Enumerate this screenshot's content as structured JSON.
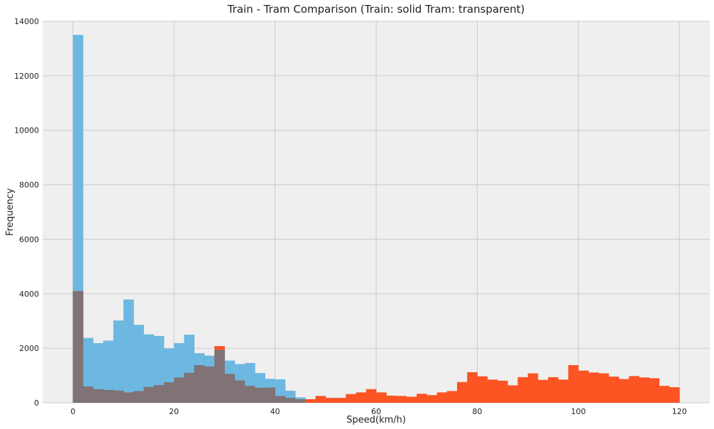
{
  "chart_data": {
    "type": "bar",
    "title": "Train - Tram Comparison (Train: solid Tram: transparent)",
    "xlabel": "Speed(km/h)",
    "ylabel": "Frequency",
    "xlim": [
      -6,
      126
    ],
    "ylim": [
      0,
      14000
    ],
    "xticks": [
      0,
      20,
      40,
      60,
      80,
      100,
      120
    ],
    "yticks": [
      0,
      2000,
      4000,
      6000,
      8000,
      10000,
      12000,
      14000
    ],
    "grid": true,
    "bin_width": 2,
    "colors": {
      "background": "#efefef",
      "grid": "#cbcbcb",
      "train": "#fc5423",
      "tram": "#6db8e1",
      "overlap": "#807275"
    },
    "series": [
      {
        "key": "train",
        "bin_starts": [
          0,
          2,
          4,
          6,
          8,
          10,
          12,
          14,
          16,
          18,
          20,
          22,
          24,
          26,
          28,
          30,
          32,
          34,
          36,
          38,
          40,
          42,
          44,
          46,
          48,
          50,
          52,
          54,
          56,
          58,
          60,
          62,
          64,
          66,
          68,
          70,
          72,
          74,
          76,
          78,
          80,
          82,
          84,
          86,
          88,
          90,
          92,
          94,
          96,
          98,
          100,
          102,
          104,
          106,
          108,
          110,
          112,
          114,
          116,
          118
        ],
        "values": [
          4100,
          600,
          500,
          470,
          450,
          380,
          430,
          580,
          650,
          750,
          930,
          1100,
          1380,
          1330,
          2080,
          1060,
          820,
          620,
          550,
          560,
          250,
          180,
          130,
          130,
          250,
          180,
          180,
          320,
          380,
          500,
          380,
          260,
          250,
          220,
          330,
          280,
          380,
          430,
          760,
          1120,
          970,
          850,
          810,
          640,
          940,
          1080,
          840,
          940,
          850,
          1380,
          1180,
          1110,
          1080,
          960,
          870,
          980,
          930,
          900,
          620,
          570
        ]
      },
      {
        "key": "tram",
        "bin_starts": [
          0,
          2,
          4,
          6,
          8,
          10,
          12,
          14,
          16,
          18,
          20,
          22,
          24,
          26,
          28,
          30,
          32,
          34,
          36,
          38,
          40,
          42,
          44
        ],
        "values": [
          13500,
          2380,
          2190,
          2280,
          3020,
          3790,
          2860,
          2510,
          2450,
          1990,
          2190,
          2500,
          1820,
          1730,
          1940,
          1550,
          1420,
          1460,
          1090,
          880,
          860,
          440,
          200
        ]
      }
    ]
  }
}
